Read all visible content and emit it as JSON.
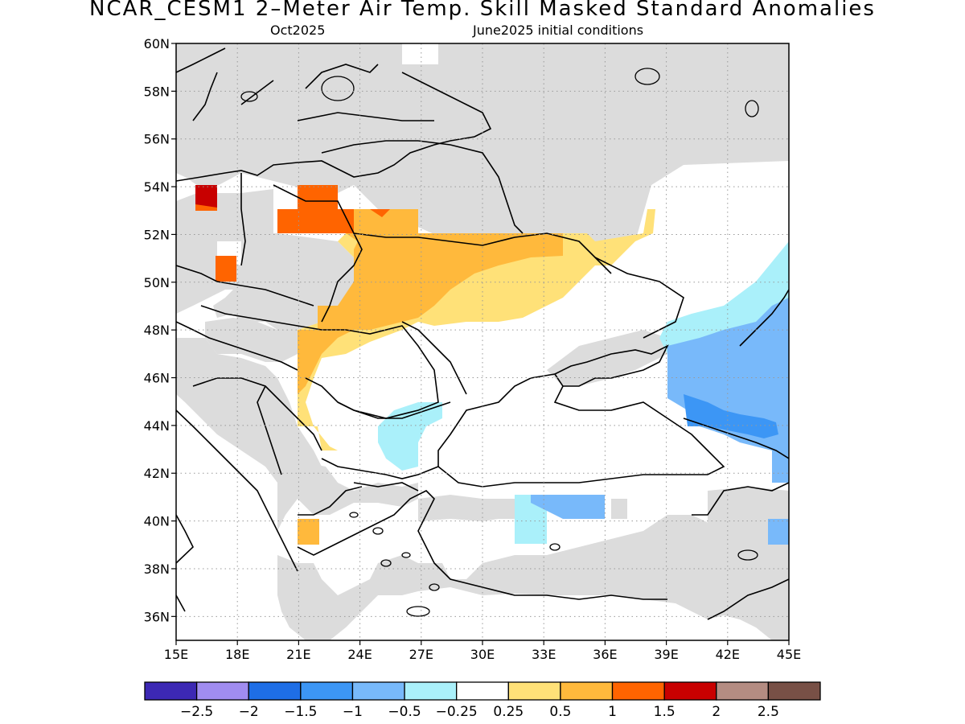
{
  "header": {
    "title": "NCAR_CESM1 2–Meter Air Temp. Skill Masked Standard Anomalies",
    "valid_month": "Oct2025",
    "initial_conditions": "June2025 initial conditions"
  },
  "map": {
    "lon_range": [
      15,
      45
    ],
    "lat_range": [
      35,
      60
    ],
    "lon_ticks": [
      {
        "value": 15,
        "label": "15E"
      },
      {
        "value": 18,
        "label": "18E"
      },
      {
        "value": 21,
        "label": "21E"
      },
      {
        "value": 24,
        "label": "24E"
      },
      {
        "value": 27,
        "label": "27E"
      },
      {
        "value": 30,
        "label": "30E"
      },
      {
        "value": 33,
        "label": "33E"
      },
      {
        "value": 36,
        "label": "36E"
      },
      {
        "value": 39,
        "label": "39E"
      },
      {
        "value": 42,
        "label": "42E"
      },
      {
        "value": 45,
        "label": "45E"
      }
    ],
    "lat_ticks": [
      {
        "value": 60,
        "label": "60N"
      },
      {
        "value": 58,
        "label": "58N"
      },
      {
        "value": 56,
        "label": "56N"
      },
      {
        "value": 54,
        "label": "54N"
      },
      {
        "value": 52,
        "label": "52N"
      },
      {
        "value": 50,
        "label": "50N"
      },
      {
        "value": 48,
        "label": "48N"
      },
      {
        "value": 46,
        "label": "46N"
      },
      {
        "value": 44,
        "label": "44N"
      },
      {
        "value": 42,
        "label": "42N"
      },
      {
        "value": 40,
        "label": "40N"
      },
      {
        "value": 38,
        "label": "38N"
      },
      {
        "value": 36,
        "label": "36N"
      }
    ],
    "grid": "dotted",
    "mask_color": "#dcdcdc"
  },
  "colorbar": {
    "colors": [
      "#3c28b4",
      "#a08cf0",
      "#1e6ee6",
      "#3c96f5",
      "#78b9fa",
      "#aaf0fa",
      "#ffffff",
      "#ffe178",
      "#ffb93c",
      "#ff6400",
      "#c80000",
      "#b48c82",
      "#785046"
    ],
    "labels": [
      "−2.5",
      "−2",
      "−1.5",
      "−1",
      "−0.5",
      "−0.25",
      "0.25",
      "0.5",
      "1",
      "1.5",
      "2",
      "2.5"
    ]
  },
  "anomaly_regions": [
    {
      "category": "masked",
      "color": "#dcdcdc"
    },
    {
      "category": "0.25 to 0.5",
      "color": "#ffe178"
    },
    {
      "category": "0.5 to 1",
      "color": "#ffb93c"
    },
    {
      "category": "1 to 1.5",
      "color": "#ff6400"
    },
    {
      "category": "1.5 to 2",
      "color": "#c80000"
    },
    {
      "category": "-0.5 to -0.25",
      "color": "#aaf0fa"
    },
    {
      "category": "-1 to -0.5",
      "color": "#78b9fa"
    },
    {
      "category": "-1.5 to -1",
      "color": "#3c96f5"
    }
  ]
}
